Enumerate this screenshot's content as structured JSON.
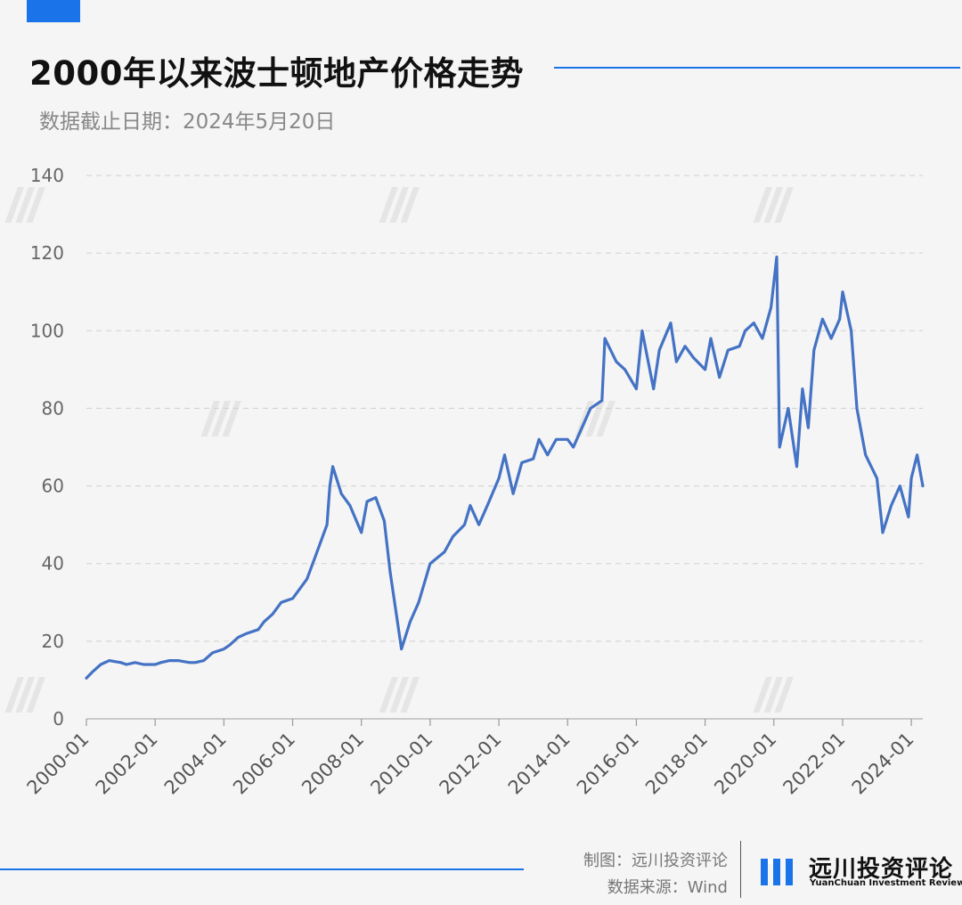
{
  "header": {
    "title": "2000年以来波士顿地产价格走势",
    "subtitle": "数据截止日期：2024年5月20日"
  },
  "footer": {
    "credit_maker": "制图：远川投资评论",
    "credit_source": "数据来源：Wind",
    "logo_cn": "远川投资评论",
    "logo_en": "YuanChuan Investment Review"
  },
  "colors": {
    "accent": "#1a73e8",
    "line": "#4472c4",
    "grid": "#d0d0d0",
    "background": "#f5f5f5"
  },
  "chart_data": {
    "type": "line",
    "title": "2000年以来波士顿地产价格走势",
    "xlabel": "",
    "ylabel": "",
    "ylim": [
      0,
      140
    ],
    "yticks": [
      0,
      20,
      40,
      60,
      80,
      100,
      120,
      140
    ],
    "xlim": [
      "2000-01",
      "2024-05"
    ],
    "xtick_labels": [
      "2000-01",
      "2002-01",
      "2004-01",
      "2006-01",
      "2008-01",
      "2010-01",
      "2012-01",
      "2014-01",
      "2016-01",
      "2018-01",
      "2020-01",
      "2022-01",
      "2024-01"
    ],
    "grid": "horizontal dashed",
    "legend": "none",
    "series": [
      {
        "x": [
          "2000-01",
          "2000-03",
          "2000-06",
          "2000-09",
          "2001-01",
          "2001-03",
          "2001-06",
          "2001-09",
          "2002-01",
          "2002-03",
          "2002-06",
          "2002-09",
          "2003-01",
          "2003-03",
          "2003-06",
          "2003-09",
          "2004-01",
          "2004-03",
          "2004-06",
          "2004-09",
          "2005-01",
          "2005-03",
          "2005-06",
          "2005-09",
          "2006-01",
          "2006-03",
          "2006-06",
          "2006-09",
          "2007-01",
          "2007-02",
          "2007-03",
          "2007-06",
          "2007-09",
          "2008-01",
          "2008-03",
          "2008-06",
          "2008-09",
          "2008-11",
          "2009-01",
          "2009-03",
          "2009-06",
          "2009-09",
          "2010-01",
          "2010-06",
          "2010-09",
          "2011-01",
          "2011-03",
          "2011-06",
          "2011-09",
          "2012-01",
          "2012-03",
          "2012-06",
          "2012-09",
          "2013-01",
          "2013-03",
          "2013-06",
          "2013-09",
          "2014-01",
          "2014-03",
          "2014-06",
          "2014-09",
          "2015-01",
          "2015-02",
          "2015-06",
          "2015-09",
          "2016-01",
          "2016-03",
          "2016-07",
          "2016-09",
          "2017-01",
          "2017-03",
          "2017-06",
          "2017-09",
          "2018-01",
          "2018-03",
          "2018-06",
          "2018-09",
          "2019-01",
          "2019-03",
          "2019-06",
          "2019-09",
          "2019-12",
          "2020-02",
          "2020-03",
          "2020-06",
          "2020-09",
          "2020-11",
          "2021-01",
          "2021-03",
          "2021-06",
          "2021-09",
          "2021-12",
          "2022-01",
          "2022-04",
          "2022-06",
          "2022-09",
          "2023-01",
          "2023-03",
          "2023-06",
          "2023-09",
          "2023-12",
          "2024-01",
          "2024-03",
          "2024-05"
        ],
        "y": [
          10.5,
          12,
          14,
          15,
          14.5,
          14,
          14.5,
          14,
          14,
          14.5,
          15,
          15,
          14.5,
          14.5,
          15,
          17,
          18,
          19,
          21,
          22,
          23,
          25,
          27,
          30,
          31,
          33,
          36,
          42,
          50,
          60,
          65,
          58,
          55,
          48,
          56,
          57,
          51,
          38,
          28,
          18,
          25,
          30,
          40,
          43,
          47,
          50,
          55,
          50,
          55,
          62,
          68,
          58,
          66,
          67,
          72,
          68,
          72,
          72,
          70,
          75,
          80,
          82,
          98,
          92,
          90,
          85,
          100,
          85,
          95,
          102,
          92,
          96,
          93,
          90,
          98,
          88,
          95,
          96,
          100,
          102,
          98,
          106,
          119,
          70,
          80,
          65,
          85,
          75,
          95,
          103,
          98,
          103,
          110,
          100,
          80,
          68,
          62,
          48,
          55,
          60,
          52,
          62,
          68,
          60
        ]
      }
    ]
  }
}
